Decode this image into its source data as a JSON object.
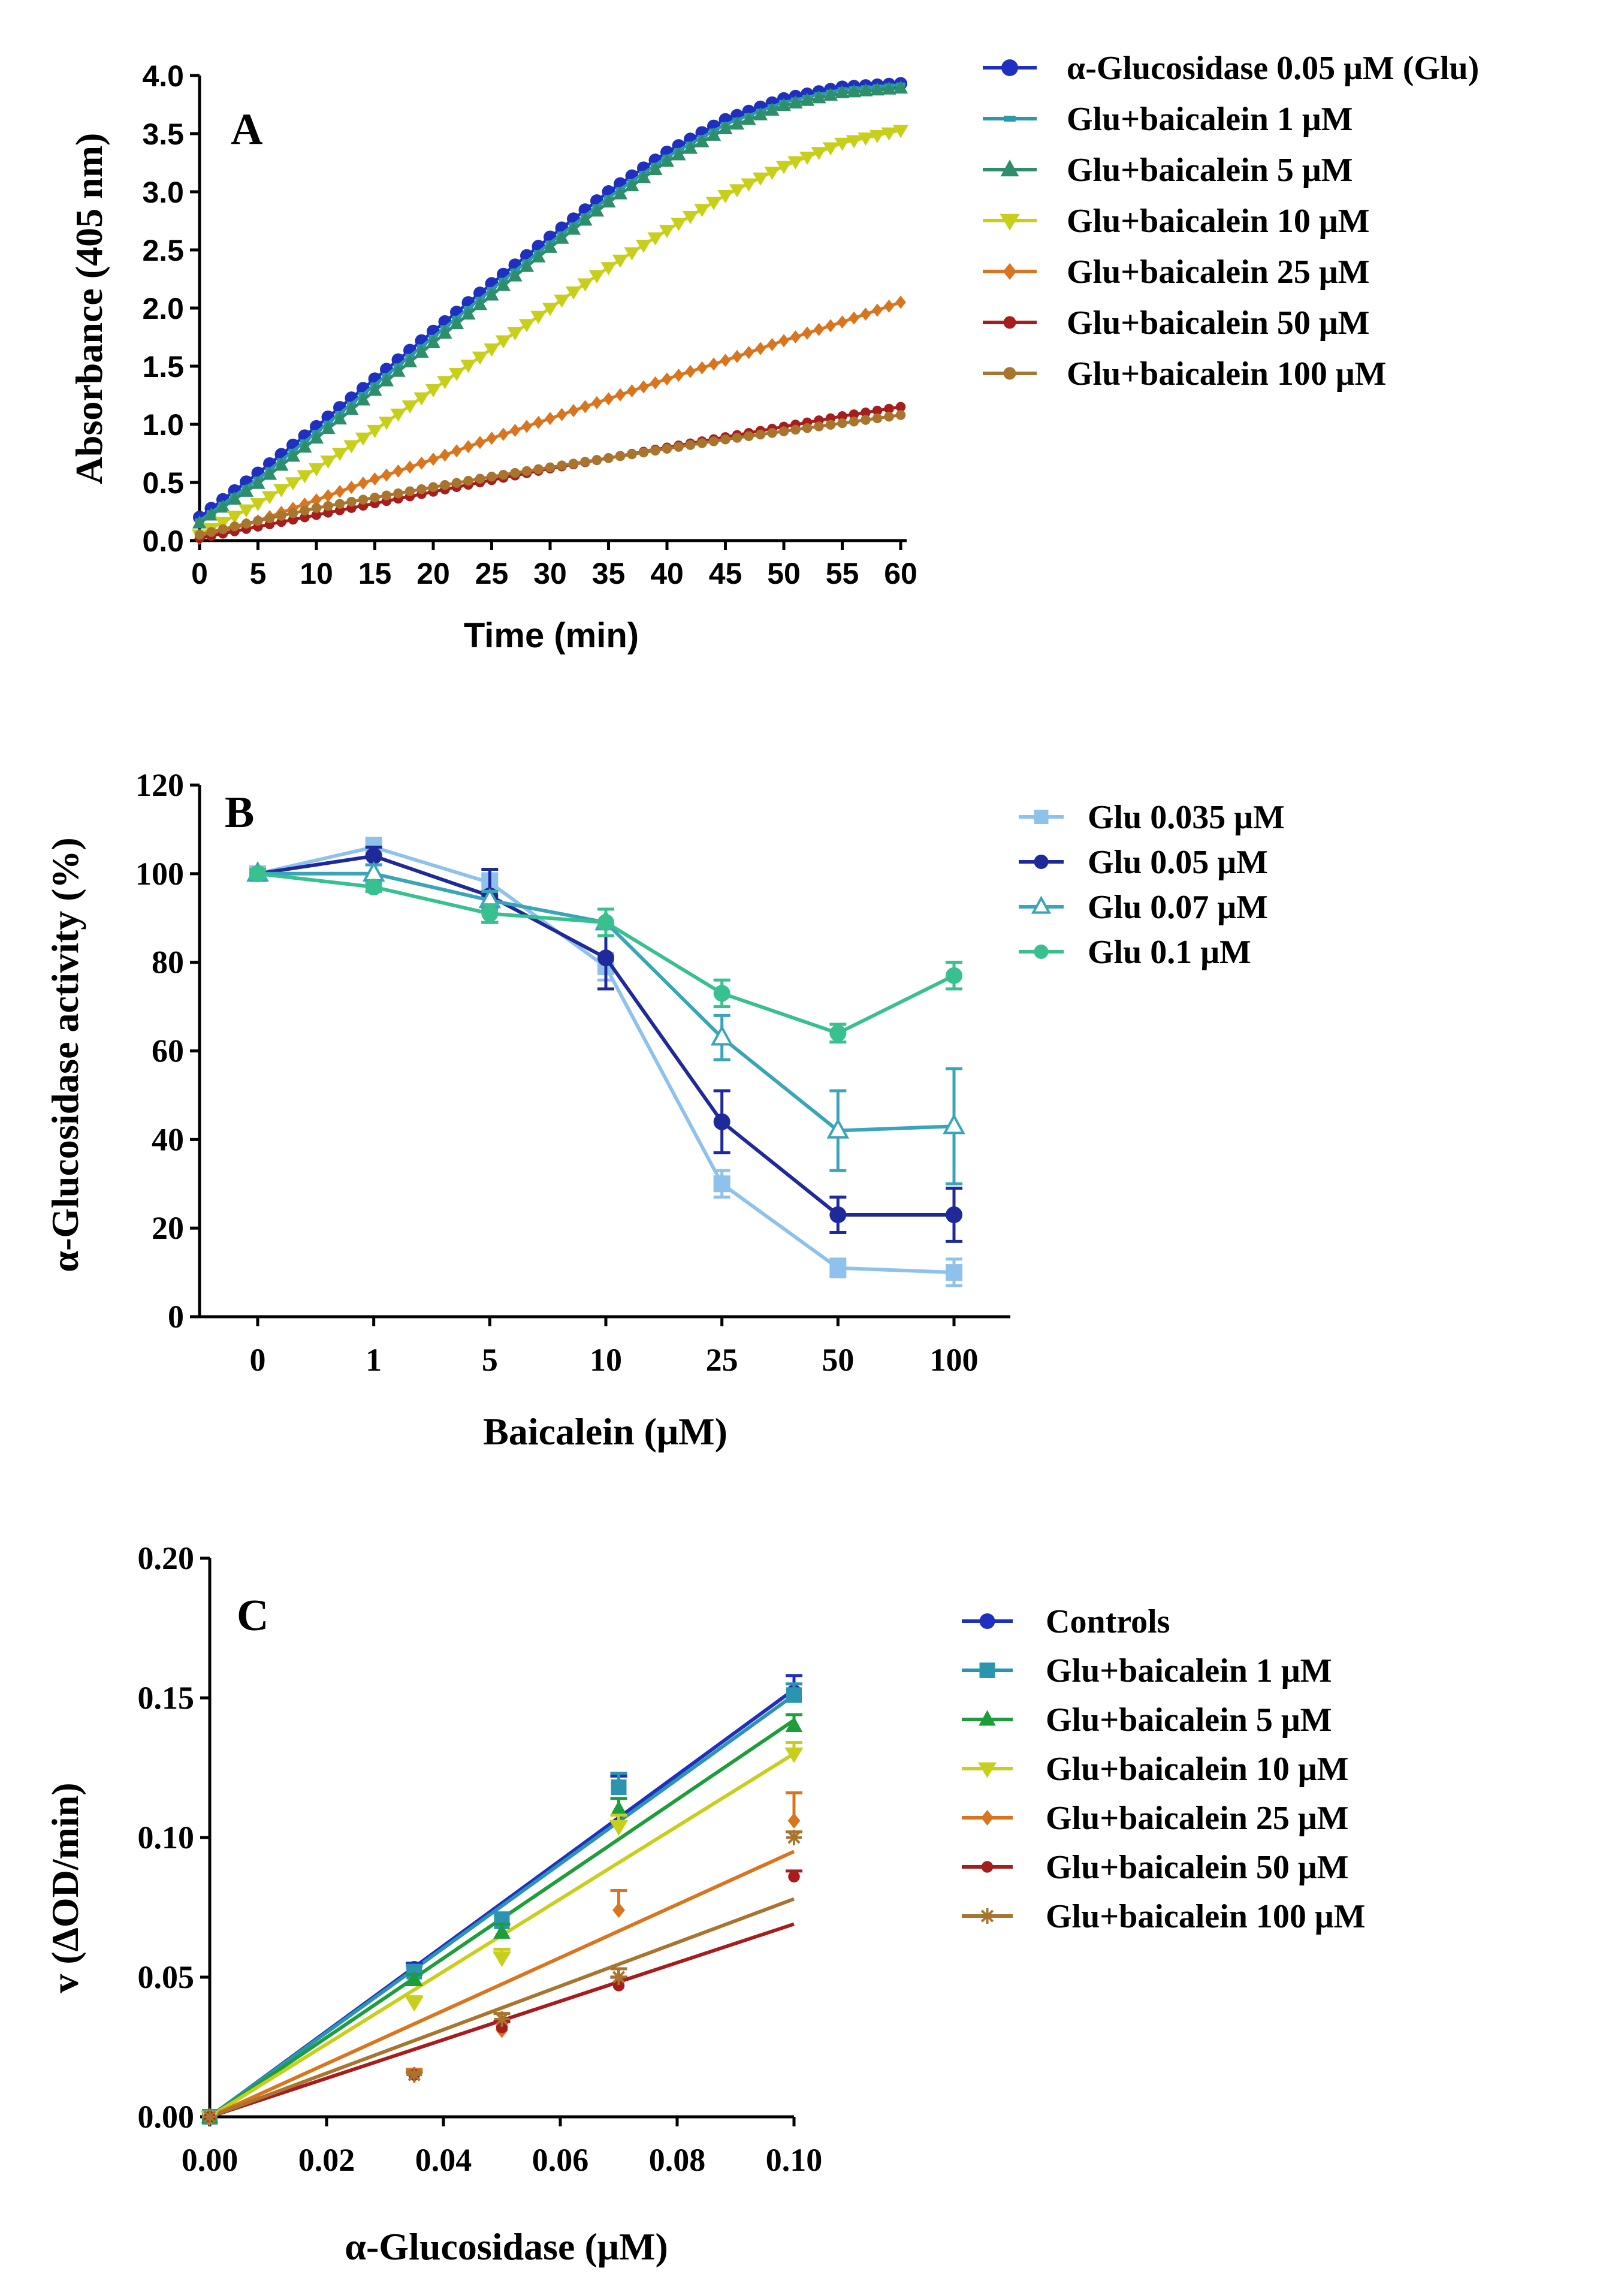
{
  "chart_data": [
    {
      "panel": "A",
      "type": "line",
      "xlabel": "Time (min)",
      "ylabel": "Absorbance (405 nm)",
      "xlim": [
        0,
        60
      ],
      "ylim": [
        0,
        4
      ],
      "xticks": [
        "0",
        "5",
        "10",
        "15",
        "20",
        "25",
        "30",
        "35",
        "40",
        "45",
        "50",
        "55",
        "60"
      ],
      "yticks": [
        "0.0",
        "0.5",
        "1.0",
        "1.5",
        "2.0",
        "2.5",
        "3.0",
        "3.5",
        "4.0"
      ],
      "legend_position": "right",
      "series": [
        {
          "name": "α-Glucosidase 0.05 μM (Glu)",
          "color": "#1f2fbf",
          "marker": "circle",
          "x": [
            0,
            5,
            10,
            15,
            20,
            25,
            30,
            35,
            40,
            45,
            50,
            55,
            60
          ],
          "y": [
            0.2,
            0.58,
            0.98,
            1.39,
            1.8,
            2.21,
            2.61,
            3.0,
            3.34,
            3.62,
            3.8,
            3.9,
            3.93
          ]
        },
        {
          "name": "Glu+baicalein 1 μM",
          "color": "#2b9aa6",
          "marker": "dash",
          "x": [
            0,
            5,
            10,
            15,
            20,
            25,
            30,
            35,
            40,
            45,
            50,
            55,
            60
          ],
          "y": [
            0.17,
            0.53,
            0.93,
            1.34,
            1.75,
            2.16,
            2.56,
            2.95,
            3.3,
            3.58,
            3.77,
            3.88,
            3.92
          ]
        },
        {
          "name": "Glu+baicalein 5 μM",
          "color": "#2e8e6a",
          "marker": "triangle",
          "x": [
            0,
            5,
            10,
            15,
            20,
            25,
            30,
            35,
            40,
            45,
            50,
            55,
            60
          ],
          "y": [
            0.15,
            0.49,
            0.88,
            1.29,
            1.7,
            2.11,
            2.52,
            2.91,
            3.26,
            3.54,
            3.74,
            3.85,
            3.89
          ]
        },
        {
          "name": "Glu+baicalein 10 μM",
          "color": "#c8cf1a",
          "marker": "triangle-down",
          "x": [
            0,
            5,
            10,
            15,
            20,
            25,
            30,
            35,
            40,
            45,
            50,
            55,
            60
          ],
          "y": [
            0.05,
            0.32,
            0.62,
            0.95,
            1.3,
            1.65,
            2.0,
            2.35,
            2.67,
            2.97,
            3.22,
            3.42,
            3.53
          ]
        },
        {
          "name": "Glu+baicalein 25 μM",
          "color": "#d9751e",
          "marker": "diamond",
          "x": [
            0,
            5,
            10,
            15,
            20,
            25,
            30,
            35,
            40,
            45,
            50,
            55,
            60
          ],
          "y": [
            0.02,
            0.17,
            0.35,
            0.53,
            0.7,
            0.88,
            1.05,
            1.22,
            1.39,
            1.55,
            1.72,
            1.88,
            2.05
          ]
        },
        {
          "name": "Glu+baicalein 50 μM",
          "color": "#a71d1d",
          "marker": "circle-small",
          "x": [
            0,
            5,
            10,
            15,
            20,
            25,
            30,
            35,
            40,
            45,
            50,
            55,
            60
          ],
          "y": [
            0.02,
            0.12,
            0.22,
            0.32,
            0.42,
            0.52,
            0.62,
            0.71,
            0.8,
            0.89,
            0.98,
            1.07,
            1.15
          ]
        },
        {
          "name": "Glu+baicalein 100 μM",
          "color": "#a8742e",
          "marker": "circle-small",
          "x": [
            0,
            5,
            10,
            15,
            20,
            25,
            30,
            35,
            40,
            45,
            50,
            55,
            60
          ],
          "y": [
            0.05,
            0.17,
            0.28,
            0.37,
            0.46,
            0.55,
            0.63,
            0.71,
            0.79,
            0.87,
            0.94,
            1.01,
            1.08
          ]
        }
      ]
    },
    {
      "panel": "B",
      "type": "line",
      "xlabel": "Baicalein (μM)",
      "ylabel": "α-Glucosidase activity (%)",
      "categories": [
        "0",
        "1",
        "5",
        "10",
        "25",
        "50",
        "100"
      ],
      "ylim": [
        0,
        120
      ],
      "yticks": [
        "0",
        "20",
        "40",
        "60",
        "80",
        "100",
        "120"
      ],
      "legend_position": "right",
      "series": [
        {
          "name": "Glu 0.035 μM",
          "color": "#8ec2ec",
          "marker": "square",
          "values": [
            100,
            106,
            98,
            79,
            30,
            11,
            10
          ],
          "errors": [
            1,
            2,
            2,
            3,
            3,
            2,
            3
          ]
        },
        {
          "name": "Glu 0.05 μM",
          "color": "#1f2a9a",
          "marker": "circle",
          "values": [
            100,
            104,
            95,
            81,
            44,
            23,
            23
          ],
          "errors": [
            1,
            2,
            6,
            7,
            7,
            4,
            6
          ]
        },
        {
          "name": "Glu 0.07 μM",
          "color": "#3aa5b8",
          "marker": "triangle-open",
          "values": [
            100,
            100,
            94,
            89,
            63,
            42,
            43
          ],
          "errors": [
            1,
            2,
            2,
            3,
            5,
            9,
            13
          ]
        },
        {
          "name": "Glu 0.1 μM",
          "color": "#38c08f",
          "marker": "circle",
          "values": [
            100,
            97,
            91,
            89,
            73,
            64,
            77
          ],
          "errors": [
            1,
            1,
            2,
            3,
            3,
            2,
            3
          ]
        }
      ]
    },
    {
      "panel": "C",
      "type": "scatter",
      "xlabel": "α-Glucosidase (μM)",
      "ylabel": "v (ΔOD/min)",
      "xlim": [
        0,
        0.1
      ],
      "ylim": [
        0,
        0.2
      ],
      "xticks": [
        "0.00",
        "0.02",
        "0.04",
        "0.06",
        "0.08",
        "0.10"
      ],
      "yticks": [
        "0.00",
        "0.05",
        "0.10",
        "0.15",
        "0.20"
      ],
      "legend_position": "right",
      "fit": "linear through origin",
      "series": [
        {
          "name": "Controls",
          "color": "#1f2fbf",
          "marker": "circle",
          "x": [
            0,
            0.035,
            0.05,
            0.07,
            0.1
          ],
          "y": [
            0,
            0.053,
            0.07,
            0.118,
            0.152
          ],
          "errors": [
            0,
            0.002,
            0.003,
            0.004,
            0.006
          ],
          "slope": 1.53
        },
        {
          "name": "Glu+baicalein 1 μM",
          "color": "#2b95b0",
          "marker": "square",
          "x": [
            0,
            0.035,
            0.05,
            0.07,
            0.1
          ],
          "y": [
            0,
            0.052,
            0.07,
            0.118,
            0.151
          ],
          "errors": [
            0,
            0.002,
            0.003,
            0.005,
            0.004
          ],
          "slope": 1.51
        },
        {
          "name": "Glu+baicalein 5 μM",
          "color": "#1e9e3a",
          "marker": "triangle",
          "x": [
            0,
            0.035,
            0.05,
            0.07,
            0.1
          ],
          "y": [
            0,
            0.049,
            0.066,
            0.11,
            0.14
          ],
          "errors": [
            0,
            0.002,
            0.003,
            0.004,
            0.004
          ],
          "slope": 1.42
        },
        {
          "name": "Glu+baicalein 10 μM",
          "color": "#c8cf1a",
          "marker": "triangle-down",
          "x": [
            0,
            0.035,
            0.05,
            0.07,
            0.1
          ],
          "y": [
            0,
            0.041,
            0.057,
            0.104,
            0.13
          ],
          "errors": [
            0,
            0.002,
            0.003,
            0.004,
            0.004
          ],
          "slope": 1.3
        },
        {
          "name": "Glu+baicalein 25 μM",
          "color": "#d9751e",
          "marker": "diamond",
          "x": [
            0,
            0.035,
            0.05,
            0.07,
            0.1
          ],
          "y": [
            0,
            0.015,
            0.031,
            0.074,
            0.106
          ],
          "errors": [
            0,
            0.002,
            0.003,
            0.007,
            0.01
          ],
          "slope": 0.95
        },
        {
          "name": "Glu+baicalein 50 μM",
          "color": "#a71d1d",
          "marker": "circle-small",
          "x": [
            0,
            0.035,
            0.05,
            0.07,
            0.1
          ],
          "y": [
            0,
            0.015,
            0.032,
            0.047,
            0.086
          ],
          "errors": [
            0,
            0.001,
            0.002,
            0.003,
            0.002
          ],
          "slope": 0.69
        },
        {
          "name": "Glu+baicalein 100 μM",
          "color": "#a8742e",
          "marker": "asterisk",
          "x": [
            0,
            0.035,
            0.05,
            0.07,
            0.1
          ],
          "y": [
            0,
            0.015,
            0.035,
            0.05,
            0.1
          ],
          "errors": [
            0,
            0.001,
            0.002,
            0.003,
            0.002
          ],
          "slope": 0.78
        }
      ]
    }
  ]
}
